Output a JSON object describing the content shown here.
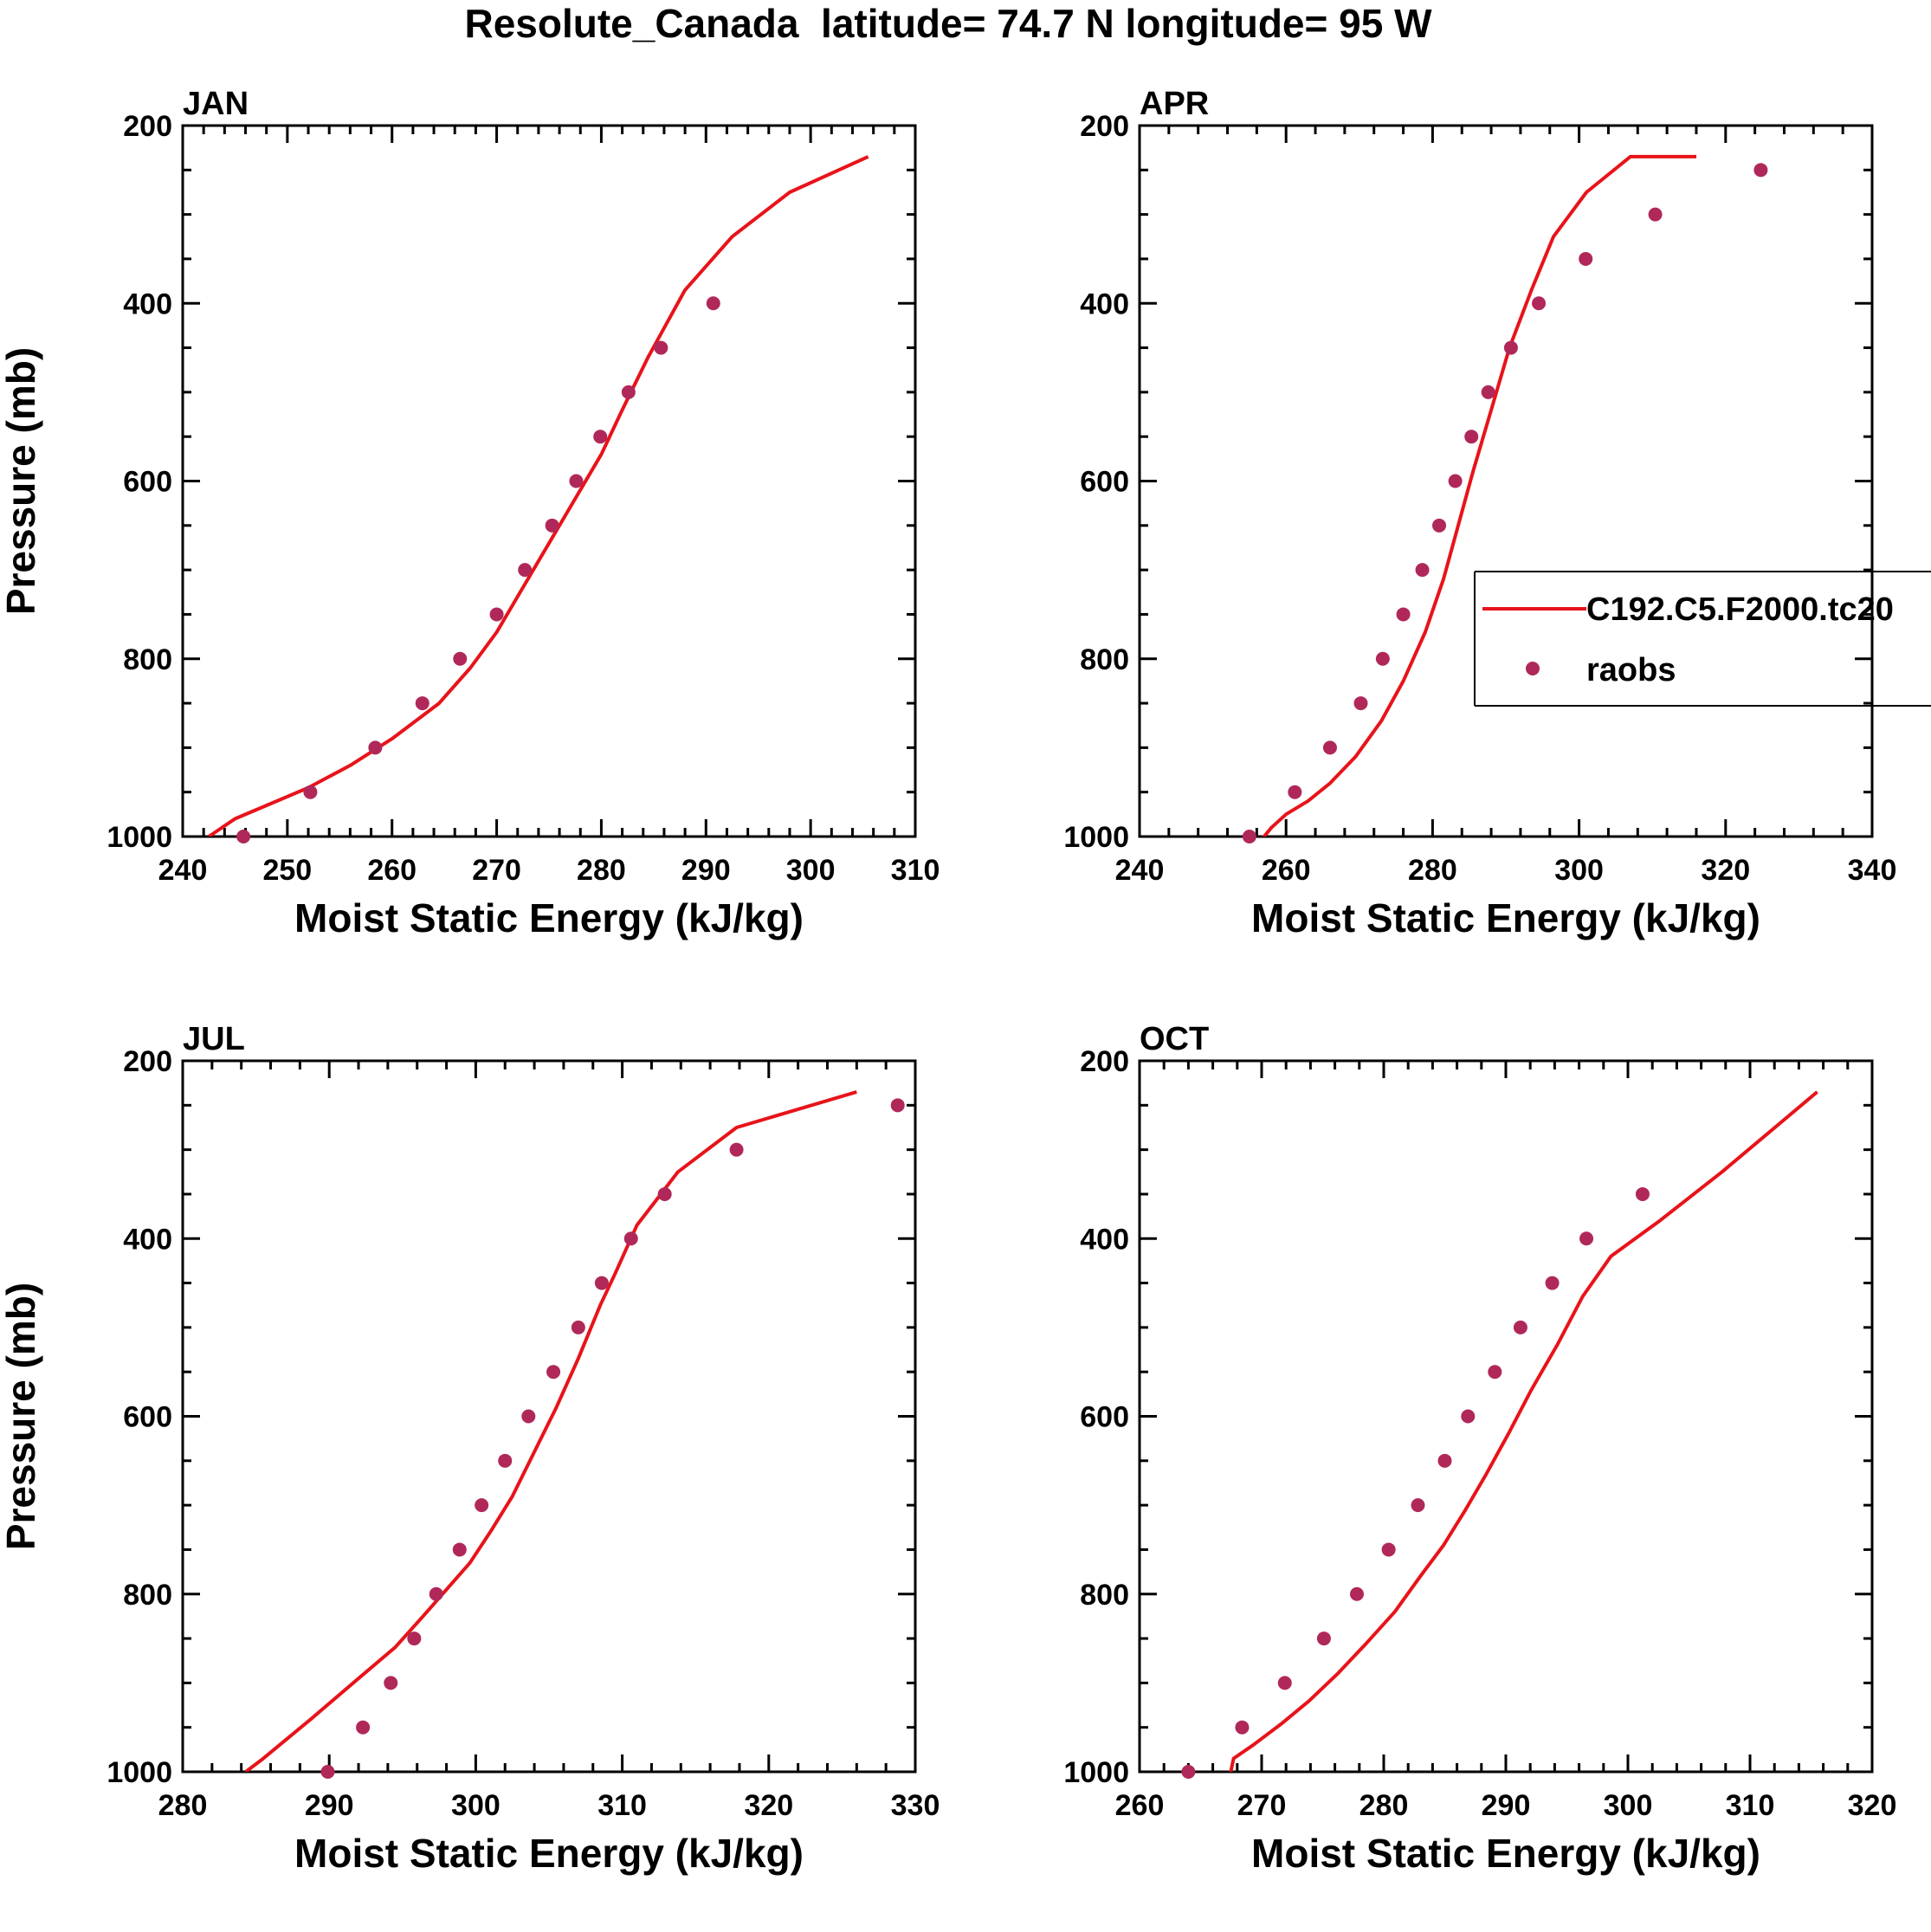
{
  "title": "Resolute_Canada  latitude= 74.7 N longitude= 95 W",
  "colors": {
    "model": "#e8131a",
    "obs": "#b0285a",
    "axis": "#000000"
  },
  "legend": {
    "model_label": "C192.C5.F2000.tc20",
    "obs_label": "raobs",
    "panel": "APR"
  },
  "chart_data": [
    {
      "type": "line",
      "panel": "JAN",
      "title": "JAN",
      "xlabel": "Moist Static Energy (kJ/kg)",
      "ylabel": "Pressure (mb)",
      "xlim": [
        240,
        310
      ],
      "ylim": [
        200,
        1000
      ],
      "xticks": [
        240,
        250,
        260,
        270,
        280,
        290,
        300,
        310
      ],
      "yticks": [
        200,
        400,
        600,
        800,
        1000
      ],
      "series": [
        {
          "name": "C192.C5.F2000.tc20",
          "kind": "line",
          "x": [
            242.5,
            245,
            248,
            252,
            256,
            260,
            264.5,
            267.5,
            270,
            272.5,
            275,
            277.5,
            280,
            282,
            284.5,
            288,
            292.5,
            298,
            305.5
          ],
          "y": [
            1000,
            980,
            965,
            945,
            920,
            890,
            850,
            810,
            770,
            720,
            670,
            620,
            570,
            520,
            460,
            385,
            325,
            275,
            235
          ]
        },
        {
          "name": "raobs",
          "kind": "scatter",
          "x": [
            245.8,
            252.2,
            258.4,
            262.9,
            266.5,
            270,
            272.7,
            275.3,
            277.6,
            279.9,
            282.6,
            285.7,
            290.7
          ],
          "y": [
            1000,
            950,
            900,
            850,
            800,
            750,
            700,
            650,
            600,
            550,
            500,
            450,
            400
          ]
        }
      ]
    },
    {
      "type": "line",
      "panel": "APR",
      "title": "APR",
      "xlabel": "Moist Static Energy (kJ/kg)",
      "ylabel": "",
      "xlim": [
        240,
        340
      ],
      "ylim": [
        200,
        1000
      ],
      "xticks": [
        240,
        260,
        280,
        300,
        320,
        340
      ],
      "yticks": [
        200,
        400,
        600,
        800,
        1000
      ],
      "series": [
        {
          "name": "C192.C5.F2000.tc20",
          "kind": "line",
          "x": [
            256.5,
            258,
            260,
            263,
            266,
            269.5,
            273,
            276,
            279,
            281.5,
            283.5,
            285.5,
            288,
            290.5,
            293.5,
            296.5,
            301,
            307,
            316
          ],
          "y": [
            1005,
            990,
            975,
            960,
            940,
            910,
            870,
            825,
            770,
            710,
            650,
            590,
            520,
            450,
            385,
            325,
            275,
            235,
            235
          ]
        },
        {
          "name": "raobs",
          "kind": "scatter",
          "x": [
            255,
            261.2,
            266,
            270.2,
            273.2,
            276,
            278.6,
            280.9,
            283.1,
            285.3,
            287.6,
            290.7,
            294.5,
            300.9,
            310.4,
            324.8
          ],
          "y": [
            1000,
            950,
            900,
            850,
            800,
            750,
            700,
            650,
            600,
            550,
            500,
            450,
            400,
            350,
            300,
            250
          ]
        }
      ]
    },
    {
      "type": "line",
      "panel": "JUL",
      "title": "JUL",
      "xlabel": "Moist Static Energy (kJ/kg)",
      "ylabel": "Pressure (mb)",
      "xlim": [
        280,
        330
      ],
      "ylim": [
        200,
        1000
      ],
      "xticks": [
        280,
        290,
        300,
        310,
        320,
        330
      ],
      "yticks": [
        200,
        400,
        600,
        800,
        1000
      ],
      "series": [
        {
          "name": "C192.C5.F2000.tc20",
          "kind": "line",
          "x": [
            284.3,
            285.5,
            288.8,
            292,
            294.5,
            296.4,
            298,
            299.6,
            301,
            302.5,
            304,
            305.5,
            307,
            308.5,
            309.5,
            311,
            313.8,
            317.8,
            326
          ],
          "y": [
            1000,
            985,
            940,
            895,
            860,
            825,
            795,
            765,
            730,
            690,
            640,
            590,
            535,
            475,
            440,
            385,
            325,
            275,
            235
          ]
        },
        {
          "name": "raobs",
          "kind": "scatter",
          "x": [
            289.9,
            292.3,
            294.2,
            295.8,
            297.3,
            298.9,
            300.4,
            302,
            303.6,
            305.3,
            307,
            308.6,
            310.6,
            312.9,
            317.8,
            328.8
          ],
          "y": [
            1000,
            950,
            900,
            850,
            800,
            750,
            700,
            650,
            600,
            550,
            500,
            450,
            400,
            350,
            300,
            250
          ]
        }
      ]
    },
    {
      "type": "line",
      "panel": "OCT",
      "title": "OCT",
      "xlabel": "Moist Static Energy (kJ/kg)",
      "ylabel": "",
      "xlim": [
        260,
        320
      ],
      "ylim": [
        200,
        1000
      ],
      "xticks": [
        260,
        270,
        280,
        290,
        300,
        310,
        320
      ],
      "yticks": [
        200,
        400,
        600,
        800,
        1000
      ],
      "series": [
        {
          "name": "C192.C5.F2000.tc20",
          "kind": "line",
          "x": [
            267.4,
            267.7,
            269.3,
            271.7,
            273.9,
            276.2,
            278.6,
            280.9,
            283,
            284.9,
            286.7,
            288.4,
            290.2,
            292.1,
            294.2,
            296.3,
            298.6,
            302.6,
            307.7,
            315.5
          ],
          "y": [
            1005,
            985,
            970,
            945,
            920,
            890,
            855,
            820,
            780,
            745,
            705,
            665,
            620,
            570,
            520,
            465,
            420,
            380,
            325,
            235
          ]
        },
        {
          "name": "raobs",
          "kind": "scatter",
          "x": [
            264,
            268.4,
            271.9,
            275.1,
            277.8,
            280.4,
            282.8,
            285,
            286.9,
            289.1,
            291.2,
            293.8,
            296.6,
            301.2
          ],
          "y": [
            1000,
            950,
            900,
            850,
            800,
            750,
            700,
            650,
            600,
            550,
            500,
            450,
            400,
            350
          ]
        }
      ]
    }
  ]
}
